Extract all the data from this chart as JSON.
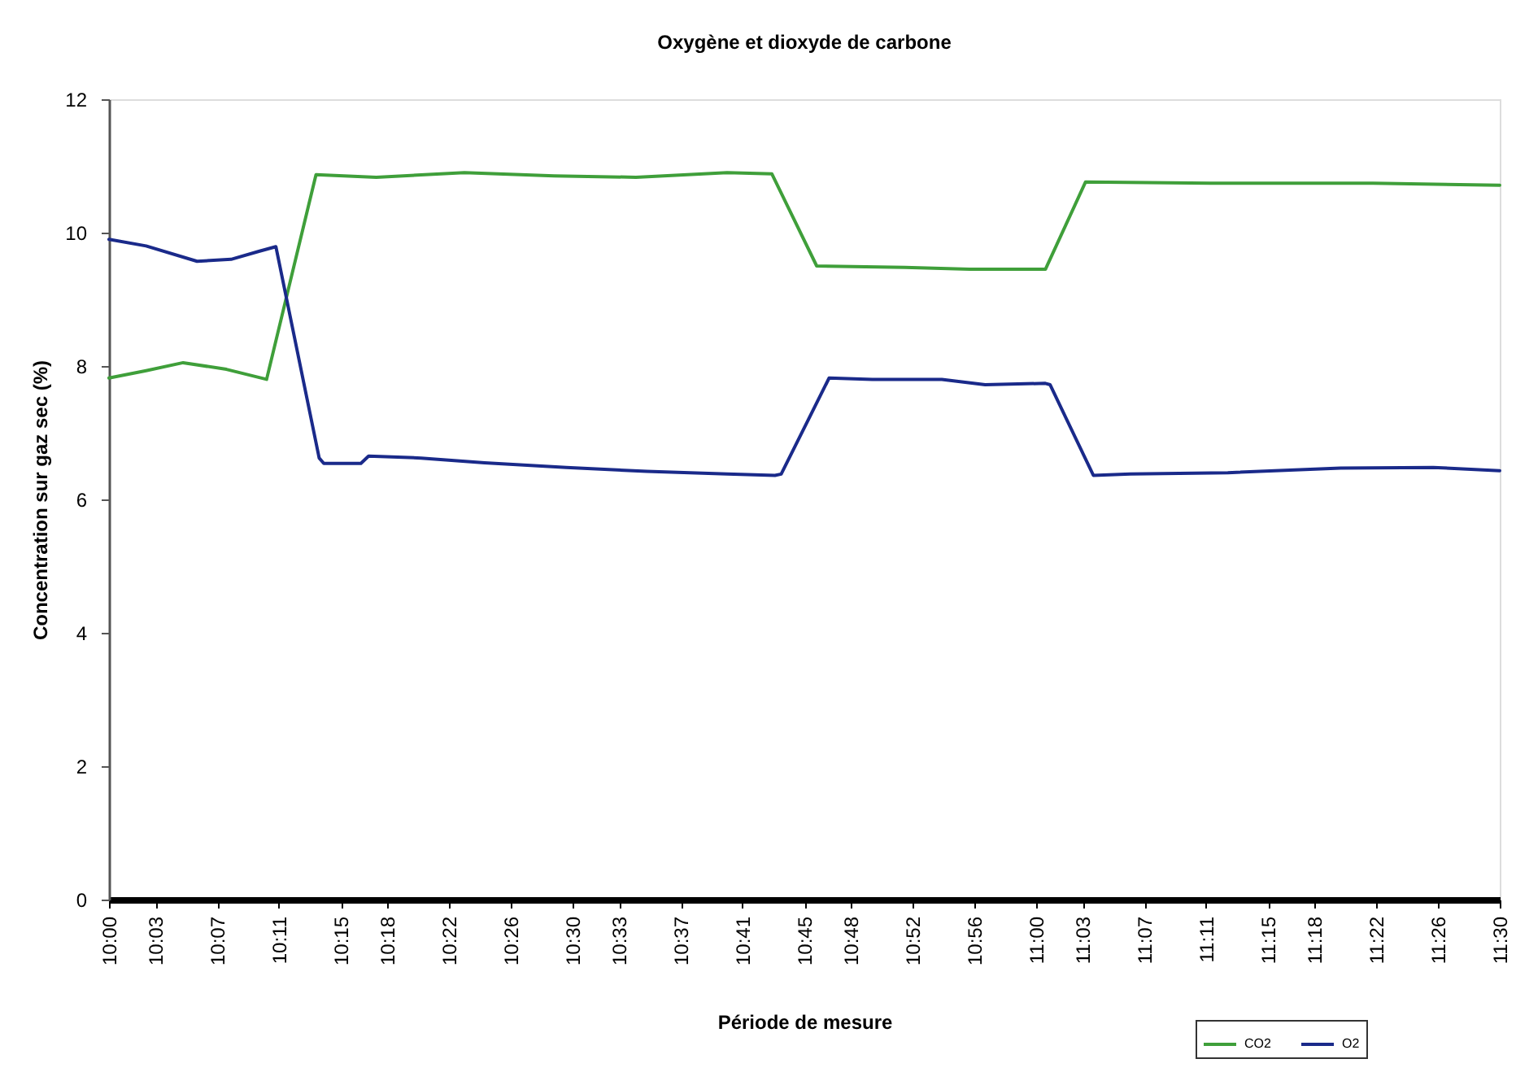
{
  "chart_data": {
    "type": "line",
    "title": "Oxygène et dioxyde de carbone",
    "xlabel": "Période de mesure",
    "ylabel": "Concentration sur gaz sec (%)",
    "xlim": [
      10,
      11.5
    ],
    "xticks": [
      {
        "value": 10,
        "label": "10:00"
      },
      {
        "value": 10.05,
        "label": "10:03"
      },
      {
        "value": 10.1167,
        "label": "10:07"
      },
      {
        "value": 10.1833,
        "label": "10:11"
      },
      {
        "value": 10.25,
        "label": "10:15"
      },
      {
        "value": 10.3,
        "label": "10:18"
      },
      {
        "value": 10.3667,
        "label": "10:22"
      },
      {
        "value": 10.4333,
        "label": "10:26"
      },
      {
        "value": 10.5,
        "label": "10:30"
      },
      {
        "value": 10.55,
        "label": "10:33"
      },
      {
        "value": 10.6167,
        "label": "10:37"
      },
      {
        "value": 10.6833,
        "label": "10:41"
      },
      {
        "value": 10.75,
        "label": "10:45"
      },
      {
        "value": 10.8,
        "label": "10:48"
      },
      {
        "value": 10.8667,
        "label": "10:52"
      },
      {
        "value": 10.9333,
        "label": "10:56"
      },
      {
        "value": 11,
        "label": "11:00"
      },
      {
        "value": 11.05,
        "label": "11:03"
      },
      {
        "value": 11.1167,
        "label": "11:07"
      },
      {
        "value": 11.1833,
        "label": "11:11"
      },
      {
        "value": 11.25,
        "label": "11:15"
      },
      {
        "value": 11.3,
        "label": "11:18"
      },
      {
        "value": 11.3667,
        "label": "11:22"
      },
      {
        "value": 11.4333,
        "label": "11:26"
      },
      {
        "value": 11.5,
        "label": "11:30"
      }
    ],
    "ylim": [
      0,
      12
    ],
    "yticks": [
      0,
      2,
      4,
      6,
      8,
      10,
      12
    ],
    "legend": "bottom right",
    "line_style": "solid",
    "series": [
      {
        "name": "CO2",
        "color": "#3f9f3a",
        "x": [
          10.0,
          10.04,
          10.08,
          10.1267,
          10.17,
          10.2233,
          10.2883,
          10.3833,
          10.48,
          10.5683,
          10.6667,
          10.715,
          10.7633,
          10.8583,
          10.9283,
          11.01,
          11.0533,
          11.1883,
          11.3633,
          11.5
        ],
        "values": [
          7.82,
          7.93,
          8.05,
          7.95,
          7.8,
          10.87,
          10.83,
          10.9,
          10.85,
          10.83,
          10.9,
          10.88,
          9.5,
          9.48,
          9.45,
          9.45,
          10.76,
          10.74,
          10.74,
          10.71
        ]
      },
      {
        "name": "O2",
        "color": "#1a2a8a",
        "x": [
          10.0,
          10.04,
          10.095,
          10.1317,
          10.1617,
          10.18,
          10.2267,
          10.2317,
          10.2717,
          10.28,
          10.3367,
          10.405,
          10.4933,
          10.58,
          10.6667,
          10.7183,
          10.725,
          10.7767,
          10.8233,
          10.8983,
          10.945,
          11.01,
          11.015,
          11.0617,
          11.1017,
          11.2067,
          11.3283,
          11.4283,
          11.5
        ],
        "values": [
          9.9,
          9.8,
          9.57,
          9.6,
          9.72,
          9.79,
          6.62,
          6.54,
          6.54,
          6.65,
          6.62,
          6.55,
          6.48,
          6.42,
          6.38,
          6.36,
          6.38,
          7.82,
          7.8,
          7.8,
          7.72,
          7.74,
          7.72,
          6.36,
          6.38,
          6.4,
          6.47,
          6.48,
          6.43
        ]
      }
    ]
  }
}
